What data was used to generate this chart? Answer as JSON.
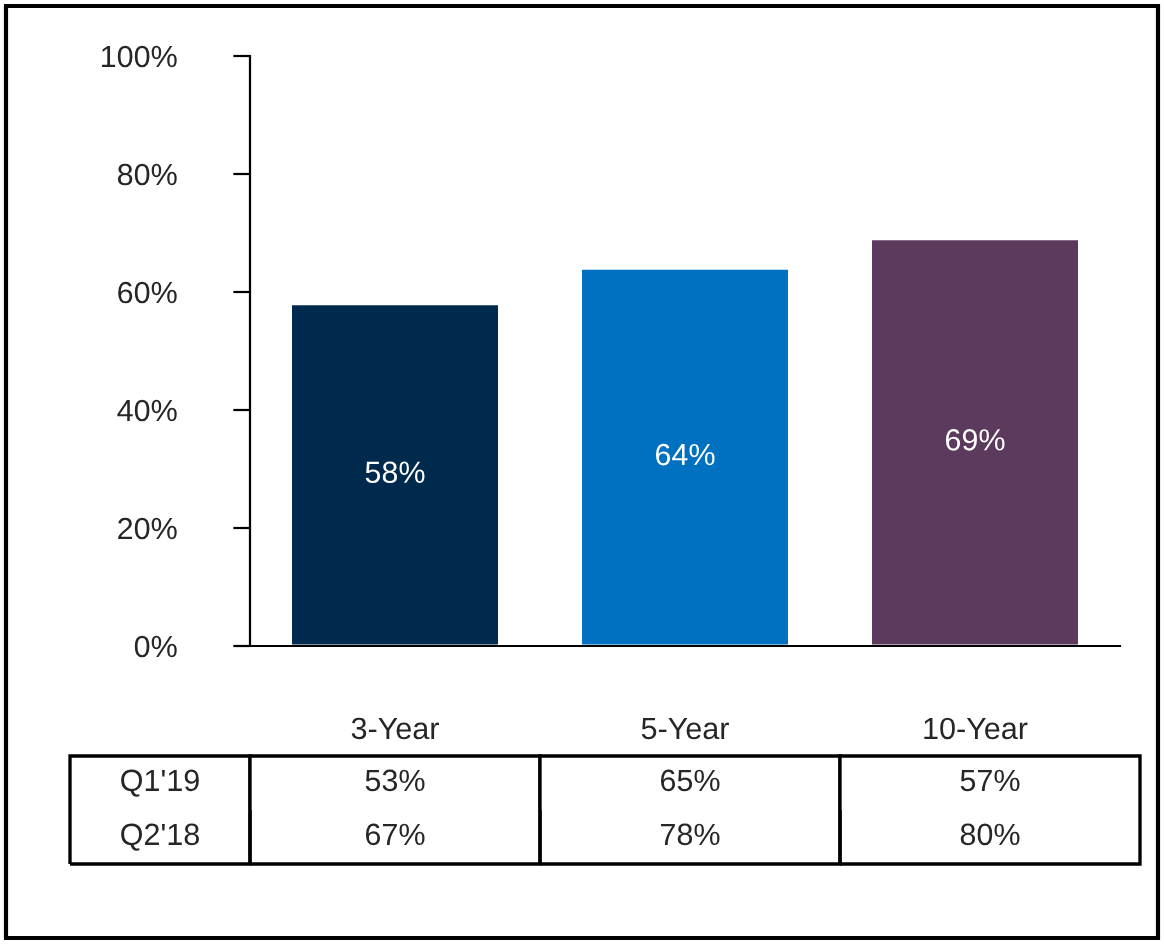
{
  "chart_data": {
    "type": "bar",
    "categories": [
      "3-Year",
      "5-Year",
      "10-Year"
    ],
    "values": [
      58,
      64,
      69
    ],
    "colors": [
      "#002a4d",
      "#0070c0",
      "#5b3a5e"
    ],
    "value_labels": [
      "58%",
      "64%",
      "69%"
    ],
    "ylim": [
      0,
      100
    ],
    "yticks": [
      {
        "value": 0,
        "label": "0%"
      },
      {
        "value": 20,
        "label": "20%"
      },
      {
        "value": 40,
        "label": "40%"
      },
      {
        "value": 60,
        "label": "60%"
      },
      {
        "value": 80,
        "label": "80%"
      },
      {
        "value": 100,
        "label": "100%"
      }
    ],
    "grid": false,
    "annotations": [
      "Q1'19",
      "53%",
      "65%",
      "57%",
      "Q2'18",
      "67%",
      "78%",
      "80%"
    ]
  }
}
